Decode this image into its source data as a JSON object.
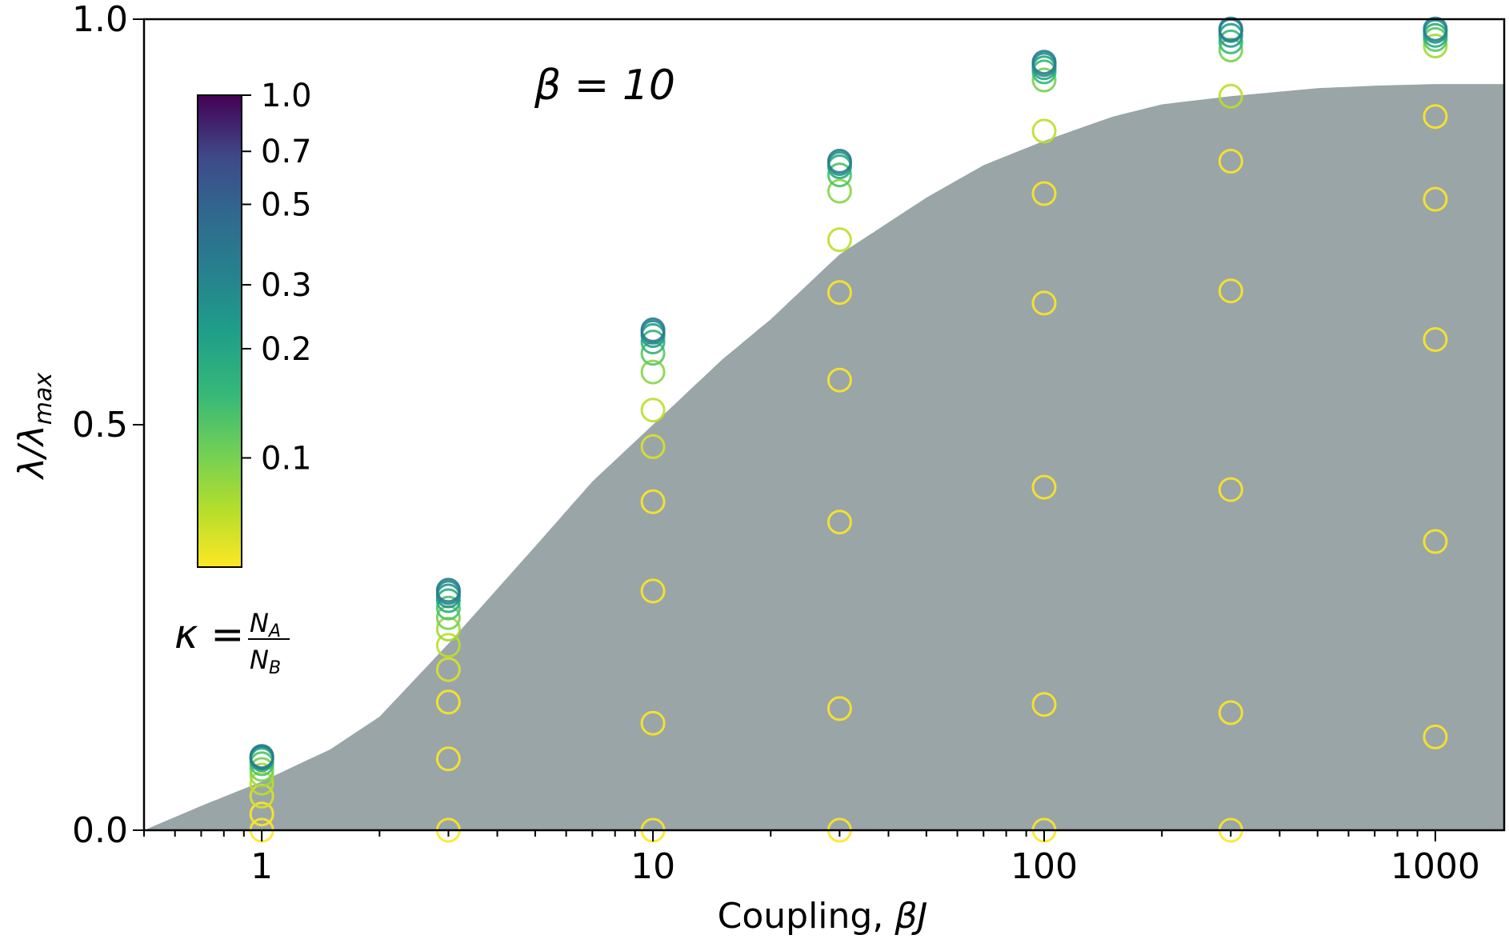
{
  "chart_data": {
    "type": "scatter",
    "xlabel": "Coupling, ",
    "xlabel_var": "βJ",
    "ylabel": "λ/λ",
    "ylabel_sub": "max",
    "xscale": "log",
    "xlim": [
      0.5,
      1500
    ],
    "ylim": [
      0.0,
      1.0
    ],
    "x_ticks": [
      1,
      10,
      100,
      1000
    ],
    "x_tick_labels": [
      "1",
      "10",
      "100",
      "1000"
    ],
    "y_ticks": [
      0.0,
      0.5,
      1.0
    ],
    "y_tick_labels": [
      "0.0",
      "0.5",
      "1.0"
    ],
    "annotation": "β = 10",
    "colorbar": {
      "label_lhs": "κ = ",
      "label_num": "N",
      "label_num_sub": "A",
      "label_den": "N",
      "label_den_sub": "B",
      "ticks": [
        0.1,
        0.2,
        0.3,
        0.5,
        0.7,
        1.0
      ],
      "tick_labels": [
        "0.1",
        "0.2",
        "0.3",
        "0.5",
        "0.7",
        "1.0"
      ],
      "range": [
        0.05,
        1.0
      ],
      "colormap": "viridis"
    },
    "shaded_region": {
      "color": "#9aa5a8",
      "x": [
        0.5,
        0.7,
        1,
        1.5,
        2,
        3,
        5,
        7,
        10,
        15,
        20,
        30,
        50,
        70,
        100,
        150,
        200,
        300,
        500,
        700,
        1000,
        1500
      ],
      "y": [
        0.0,
        0.03,
        0.06,
        0.1,
        0.14,
        0.23,
        0.35,
        0.43,
        0.5,
        0.58,
        0.63,
        0.71,
        0.78,
        0.82,
        0.85,
        0.88,
        0.895,
        0.905,
        0.915,
        0.918,
        0.92,
        0.92
      ]
    },
    "marker": "open-circle",
    "groups": [
      {
        "x": 1,
        "points": [
          {
            "y": 0.0,
            "kappa": 0.05
          },
          {
            "y": 0.02,
            "kappa": 0.05
          },
          {
            "y": 0.042,
            "kappa": 0.06
          },
          {
            "y": 0.058,
            "kappa": 0.07
          },
          {
            "y": 0.068,
            "kappa": 0.08
          },
          {
            "y": 0.075,
            "kappa": 0.1
          },
          {
            "y": 0.082,
            "kappa": 0.13
          },
          {
            "y": 0.087,
            "kappa": 0.18
          },
          {
            "y": 0.089,
            "kappa": 0.25
          },
          {
            "y": 0.09,
            "kappa": 0.3
          },
          {
            "y": 0.091,
            "kappa": 0.35
          }
        ]
      },
      {
        "x": 3,
        "points": [
          {
            "y": 0.0,
            "kappa": 0.05
          },
          {
            "y": 0.088,
            "kappa": 0.05
          },
          {
            "y": 0.158,
            "kappa": 0.05
          },
          {
            "y": 0.198,
            "kappa": 0.06
          },
          {
            "y": 0.228,
            "kappa": 0.07
          },
          {
            "y": 0.248,
            "kappa": 0.08
          },
          {
            "y": 0.262,
            "kappa": 0.1
          },
          {
            "y": 0.274,
            "kappa": 0.13
          },
          {
            "y": 0.283,
            "kappa": 0.18
          },
          {
            "y": 0.289,
            "kappa": 0.25
          },
          {
            "y": 0.293,
            "kappa": 0.3
          },
          {
            "y": 0.296,
            "kappa": 0.35
          }
        ]
      },
      {
        "x": 10,
        "points": [
          {
            "y": 0.0,
            "kappa": 0.05
          },
          {
            "y": 0.132,
            "kappa": 0.05
          },
          {
            "y": 0.295,
            "kappa": 0.05
          },
          {
            "y": 0.405,
            "kappa": 0.05
          },
          {
            "y": 0.473,
            "kappa": 0.06
          },
          {
            "y": 0.518,
            "kappa": 0.07
          },
          {
            "y": 0.565,
            "kappa": 0.09
          },
          {
            "y": 0.588,
            "kappa": 0.12
          },
          {
            "y": 0.602,
            "kappa": 0.16
          },
          {
            "y": 0.61,
            "kappa": 0.22
          },
          {
            "y": 0.614,
            "kappa": 0.3
          },
          {
            "y": 0.617,
            "kappa": 0.35
          }
        ]
      },
      {
        "x": 30,
        "points": [
          {
            "y": 0.0,
            "kappa": 0.05
          },
          {
            "y": 0.15,
            "kappa": 0.05
          },
          {
            "y": 0.38,
            "kappa": 0.05
          },
          {
            "y": 0.555,
            "kappa": 0.05
          },
          {
            "y": 0.663,
            "kappa": 0.05
          },
          {
            "y": 0.728,
            "kappa": 0.07
          },
          {
            "y": 0.788,
            "kappa": 0.09
          },
          {
            "y": 0.808,
            "kappa": 0.13
          },
          {
            "y": 0.818,
            "kappa": 0.18
          },
          {
            "y": 0.822,
            "kappa": 0.25
          },
          {
            "y": 0.825,
            "kappa": 0.35
          }
        ]
      },
      {
        "x": 100,
        "points": [
          {
            "y": 0.0,
            "kappa": 0.05
          },
          {
            "y": 0.155,
            "kappa": 0.05
          },
          {
            "y": 0.423,
            "kappa": 0.05
          },
          {
            "y": 0.65,
            "kappa": 0.05
          },
          {
            "y": 0.785,
            "kappa": 0.05
          },
          {
            "y": 0.862,
            "kappa": 0.07
          },
          {
            "y": 0.925,
            "kappa": 0.1
          },
          {
            "y": 0.935,
            "kappa": 0.15
          },
          {
            "y": 0.94,
            "kappa": 0.2
          },
          {
            "y": 0.944,
            "kappa": 0.28
          },
          {
            "y": 0.947,
            "kappa": 0.35
          }
        ]
      },
      {
        "x": 300,
        "points": [
          {
            "y": 0.0,
            "kappa": 0.05
          },
          {
            "y": 0.145,
            "kappa": 0.05
          },
          {
            "y": 0.42,
            "kappa": 0.05
          },
          {
            "y": 0.665,
            "kappa": 0.05
          },
          {
            "y": 0.825,
            "kappa": 0.05
          },
          {
            "y": 0.905,
            "kappa": 0.07
          },
          {
            "y": 0.962,
            "kappa": 0.1
          },
          {
            "y": 0.972,
            "kappa": 0.15
          },
          {
            "y": 0.98,
            "kappa": 0.22
          },
          {
            "y": 0.986,
            "kappa": 0.3
          },
          {
            "y": 0.988,
            "kappa": 0.35
          }
        ]
      },
      {
        "x": 1000,
        "points": [
          {
            "y": 0.115,
            "kappa": 0.05
          },
          {
            "y": 0.356,
            "kappa": 0.05
          },
          {
            "y": 0.605,
            "kappa": 0.05
          },
          {
            "y": 0.778,
            "kappa": 0.05
          },
          {
            "y": 0.88,
            "kappa": 0.05
          },
          {
            "y": 0.967,
            "kappa": 0.08
          },
          {
            "y": 0.975,
            "kappa": 0.12
          },
          {
            "y": 0.98,
            "kappa": 0.18
          },
          {
            "y": 0.985,
            "kappa": 0.25
          },
          {
            "y": 0.988,
            "kappa": 0.32
          }
        ]
      }
    ]
  }
}
